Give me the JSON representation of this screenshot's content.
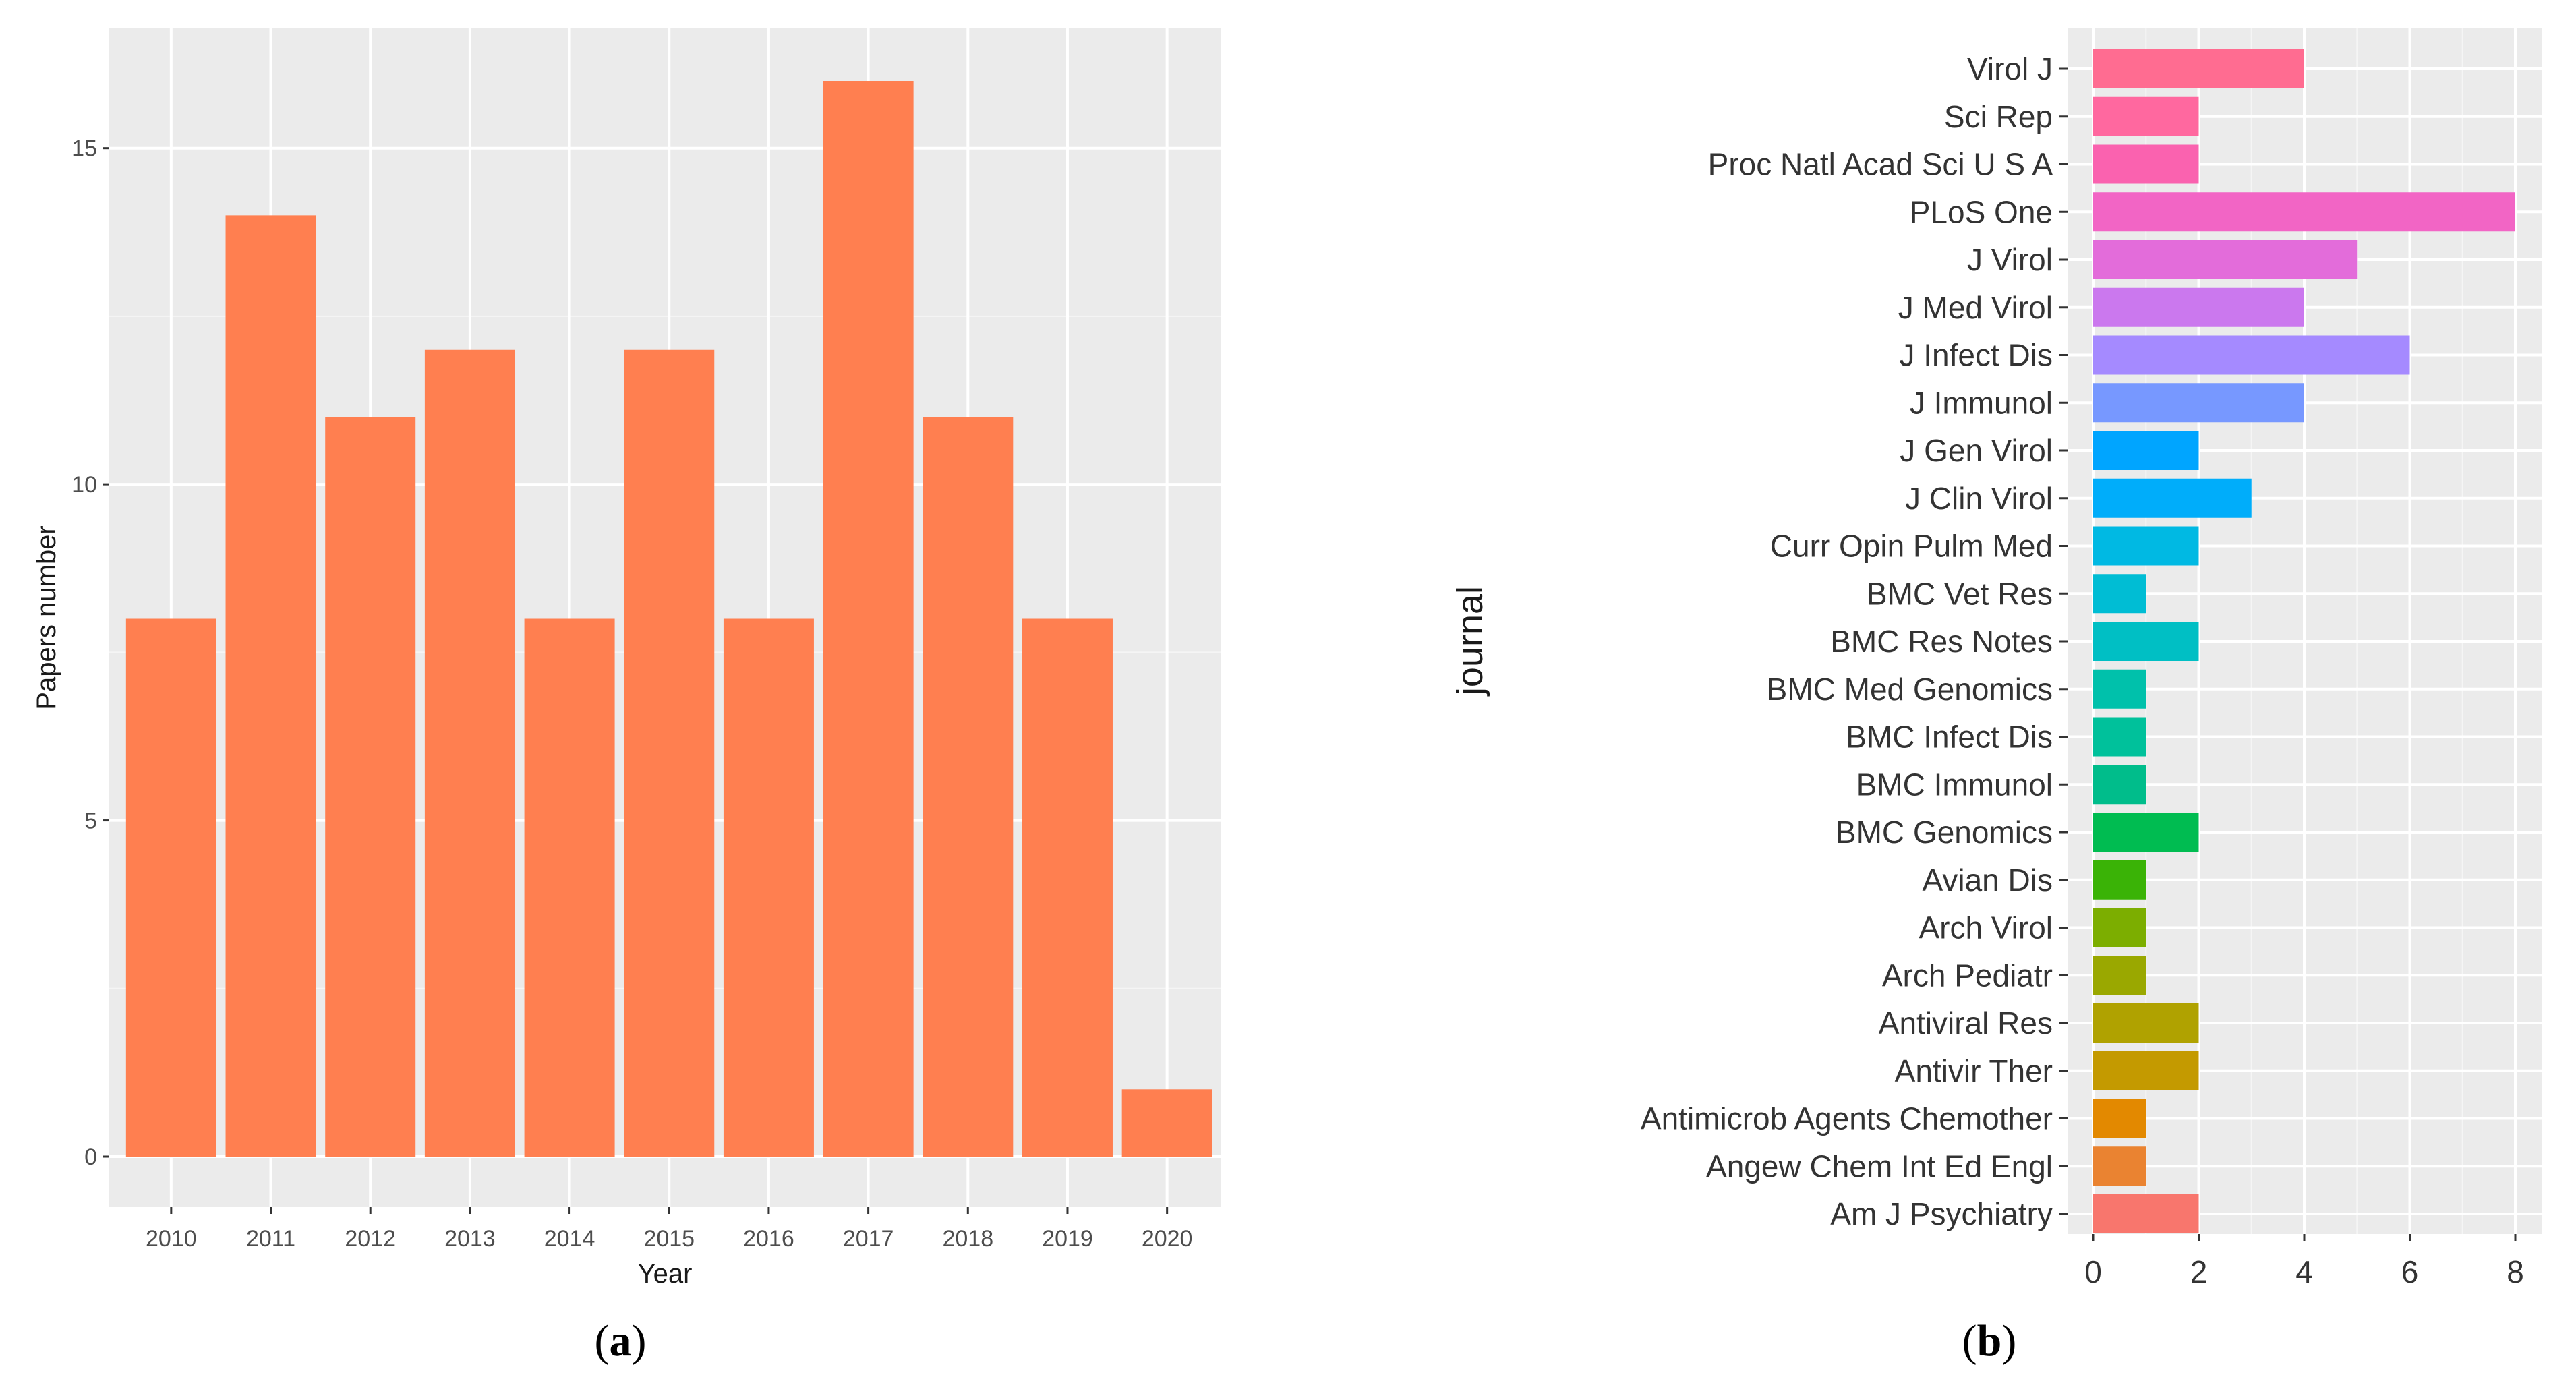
{
  "chart_data": [
    {
      "type": "bar",
      "panel_label": "a",
      "title": "",
      "xlabel": "Year",
      "ylabel": "Papers number",
      "categories": [
        "2010",
        "2011",
        "2012",
        "2013",
        "2014",
        "2015",
        "2016",
        "2017",
        "2018",
        "2019",
        "2020"
      ],
      "values": [
        8,
        14,
        11,
        12,
        8,
        12,
        8,
        16,
        11,
        8,
        1
      ],
      "ylim": [
        0,
        16.5
      ],
      "yticks": [
        0,
        5,
        10,
        15
      ],
      "bar_color": "#FF7F50",
      "background": "#EBEBEB",
      "grid": true,
      "legend": "none"
    },
    {
      "type": "bar",
      "orientation": "horizontal",
      "panel_label": "b",
      "title": "",
      "xlabel": "",
      "ylabel": "journal",
      "categories": [
        "Virol J",
        "Sci Rep",
        "Proc Natl Acad Sci U S A",
        "PLoS One",
        "J Virol",
        "J Med Virol",
        "J Infect Dis",
        "J Immunol",
        "J Gen Virol",
        "J Clin Virol",
        "Curr Opin Pulm Med",
        "BMC Vet Res",
        "BMC Res Notes",
        "BMC Med Genomics",
        "BMC Infect Dis",
        "BMC Immunol",
        "BMC Genomics",
        "Avian Dis",
        "Arch Virol",
        "Arch Pediatr",
        "Antiviral Res",
        "Antivir Ther",
        "Antimicrob Agents Chemother",
        "Angew Chem Int Ed Engl",
        "Am J Psychiatry"
      ],
      "values": [
        4,
        2,
        2,
        8,
        5,
        4,
        6,
        4,
        2,
        3,
        2,
        1,
        2,
        1,
        1,
        1,
        2,
        1,
        1,
        1,
        2,
        2,
        1,
        1,
        2
      ],
      "colors": [
        "#FF6C91",
        "#FF689F",
        "#FA62AF",
        "#F265C5",
        "#E36CDA",
        "#CB78EE",
        "#A58AFF",
        "#7798FF",
        "#00A5FF",
        "#00ADFA",
        "#00B9E3",
        "#00BDD4",
        "#00BFC4",
        "#00C1AB",
        "#00C19B",
        "#00BD8B",
        "#00BC51",
        "#3AB306",
        "#7CAE00",
        "#9AA800",
        "#B0A200",
        "#C49A00",
        "#E38900",
        "#EA8331",
        "#F8766D"
      ],
      "xlim": [
        0,
        8.2
      ],
      "xticks": [
        0,
        2,
        4,
        6,
        8
      ],
      "background": "#EBEBEB",
      "grid": true,
      "legend": "none"
    }
  ]
}
